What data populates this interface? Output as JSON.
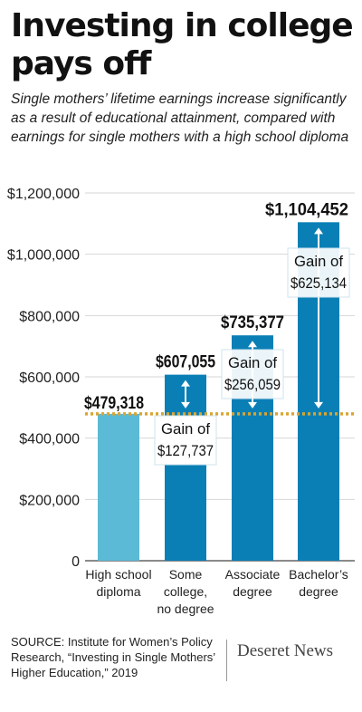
{
  "header": {
    "title": "Investing in college pays off",
    "subtitle": "Single mothers’ lifetime earnings increase significantly as a result of educational attainment, compared with earnings for single mothers with a high school diploma"
  },
  "footer": {
    "source": "SOURCE: Institute for Women’s Policy Research, “Investing in Single Mothers’ Higher Education,” 2019",
    "logo": "Deseret News"
  },
  "colors": {
    "bar_light": "#5bbad5",
    "bar_dark": "#0a7fb5",
    "baseline": "#d9a531",
    "text": "#111111"
  },
  "chart_data": {
    "type": "bar",
    "categories": [
      [
        "High school",
        "diploma"
      ],
      [
        "Some",
        "college,",
        "no degree"
      ],
      [
        "Associate",
        "degree"
      ],
      [
        "Bachelor’s",
        "degree"
      ]
    ],
    "values": [
      479318,
      607055,
      735377,
      1104452
    ],
    "value_labels": [
      "$479,318",
      "$607,055",
      "$735,377",
      "$1,104,452"
    ],
    "gain_labels": [
      null,
      [
        "Gain of",
        "$127,737"
      ],
      [
        "Gain of",
        "$256,059"
      ],
      [
        "Gain of",
        "$625,134"
      ]
    ],
    "baseline_value": 479318,
    "ylim": [
      0,
      1200000
    ],
    "yticks": [
      0,
      200000,
      400000,
      600000,
      800000,
      1000000,
      1200000
    ],
    "ytick_labels": [
      "0",
      "$200,000",
      "$400,000",
      "$600,000",
      "$800,000",
      "$1,000,000",
      "$1,200,000"
    ],
    "grid": true,
    "xlabel": "",
    "ylabel": ""
  }
}
